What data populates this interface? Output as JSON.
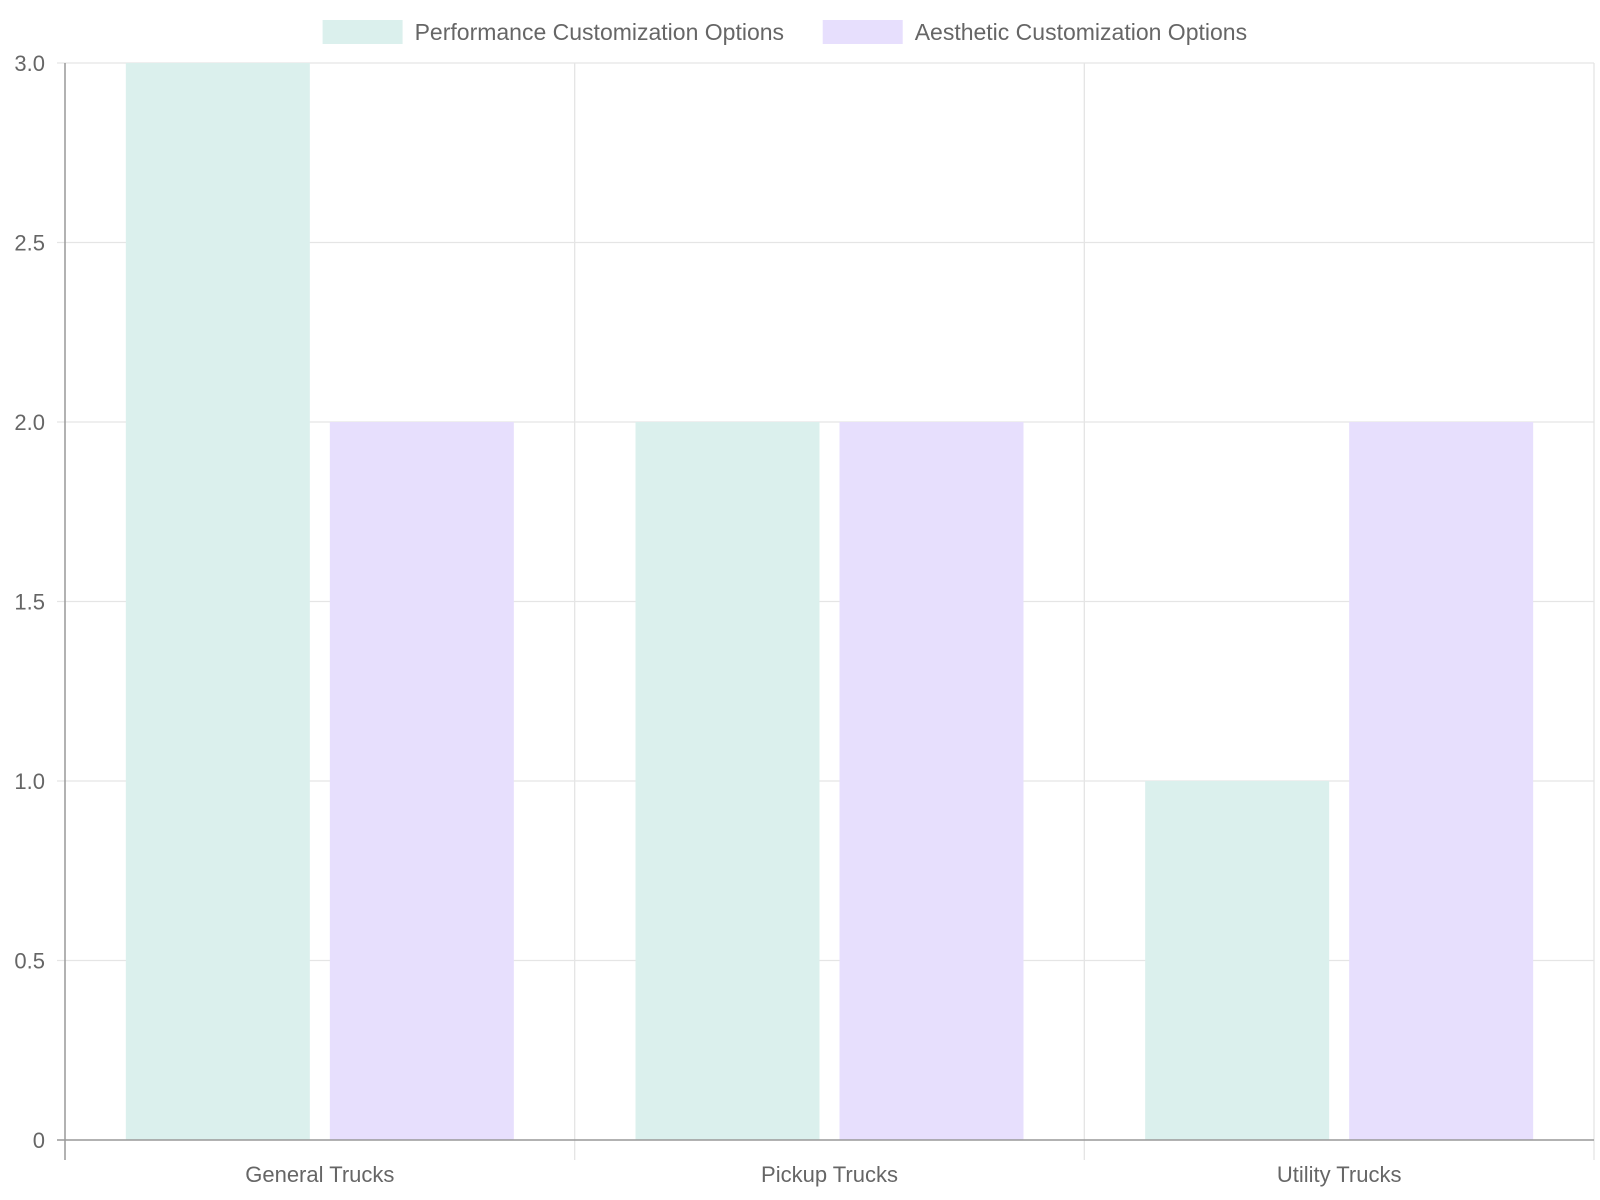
{
  "chart_data": {
    "type": "bar",
    "categories": [
      "General Trucks",
      "Pickup Trucks",
      "Utility Trucks"
    ],
    "series": [
      {
        "name": "Performance Customization Options",
        "values": [
          3,
          2,
          1
        ],
        "color": "#dbf0ed"
      },
      {
        "name": "Aesthetic Customization Options",
        "values": [
          2,
          2,
          2
        ],
        "color": "#e7dffd"
      }
    ],
    "ylim": [
      0,
      3
    ],
    "yticks": [
      "0",
      "0.5",
      "1.0",
      "1.5",
      "2.0",
      "2.5",
      "3.0"
    ],
    "grid": true,
    "legend_position": "top-center",
    "colors": {
      "grid": "#e5e5e5",
      "axis": "#999999",
      "text": "#666666"
    }
  }
}
